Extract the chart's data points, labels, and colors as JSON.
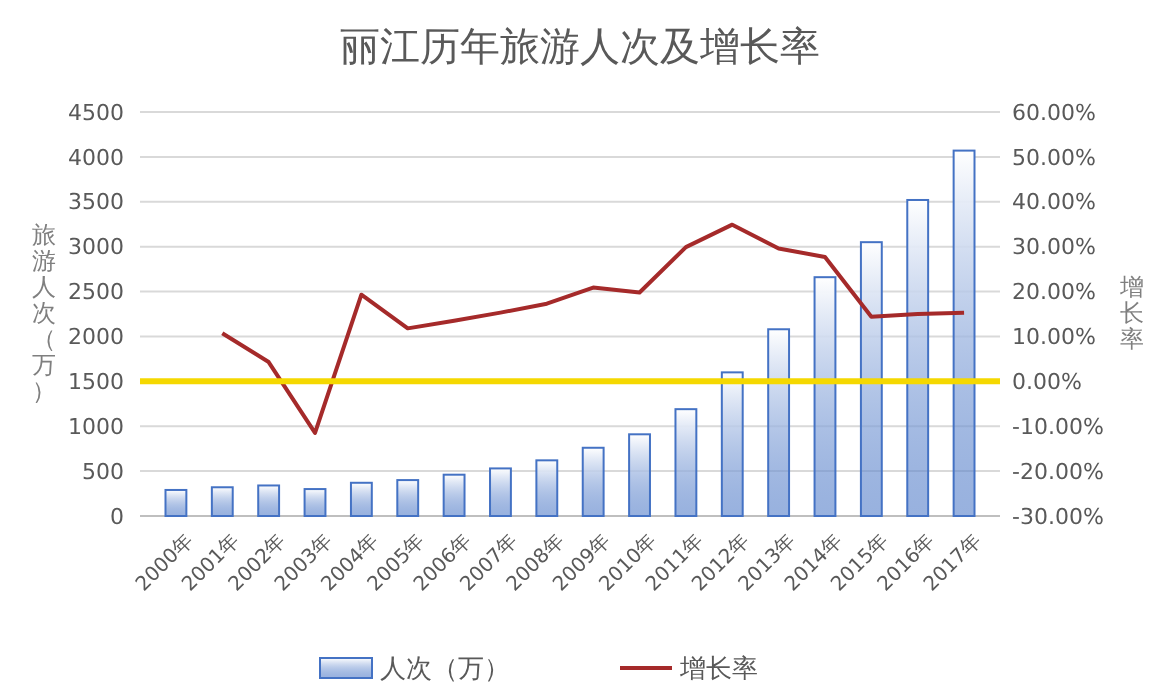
{
  "chart_data": {
    "type": "bar",
    "title": "丽江历年旅游人次及增长率",
    "ylabel": "旅游人次（万）",
    "y2label": "增长率",
    "categories": [
      "2000年",
      "2001年",
      "2002年",
      "2003年",
      "2004年",
      "2005年",
      "2006年",
      "2007年",
      "2008年",
      "2009年",
      "2010年",
      "2011年",
      "2012年",
      "2013年",
      "2014年",
      "2015年",
      "2016年",
      "2017年"
    ],
    "series": [
      {
        "name": "人次（万）",
        "color": "#4472c4",
        "values": [
          290,
          320,
          340,
          300,
          370,
          400,
          460,
          530,
          620,
          760,
          910,
          1190,
          1600,
          2080,
          2660,
          3050,
          3520,
          4070
        ]
      },
      {
        "name": "增长率",
        "type": "line",
        "axis": "y2",
        "color": "#a52a2a",
        "values": [
          null,
          10.7,
          4.3,
          -11.5,
          19.3,
          11.8,
          13.5,
          15.3,
          17.3,
          20.9,
          19.8,
          29.9,
          34.9,
          29.6,
          27.7,
          14.4,
          15.0,
          15.3
        ]
      }
    ],
    "ylim": [
      0,
      4500
    ],
    "yticks": [
      0,
      500,
      1000,
      1500,
      2000,
      2500,
      3000,
      3500,
      4000,
      4500
    ],
    "y2lim": [
      -30,
      60
    ],
    "y2ticks": [
      {
        "value": -30,
        "label": "-30.00%"
      },
      {
        "value": -20,
        "label": "-20.00%"
      },
      {
        "value": -10,
        "label": "-10.00%"
      },
      {
        "value": 0,
        "label": "0.00%"
      },
      {
        "value": 10,
        "label": "10.00%"
      },
      {
        "value": 20,
        "label": "20.00%"
      },
      {
        "value": 30,
        "label": "30.00%"
      },
      {
        "value": 40,
        "label": "40.00%"
      },
      {
        "value": 50,
        "label": "50.00%"
      },
      {
        "value": 60,
        "label": "60.00%"
      }
    ],
    "ref_lines": [
      {
        "axis": "y2",
        "value": 0,
        "color": "#f5d800"
      }
    ],
    "grid": "y",
    "legend": "bottom",
    "marker": "none",
    "line_style": "solid"
  }
}
